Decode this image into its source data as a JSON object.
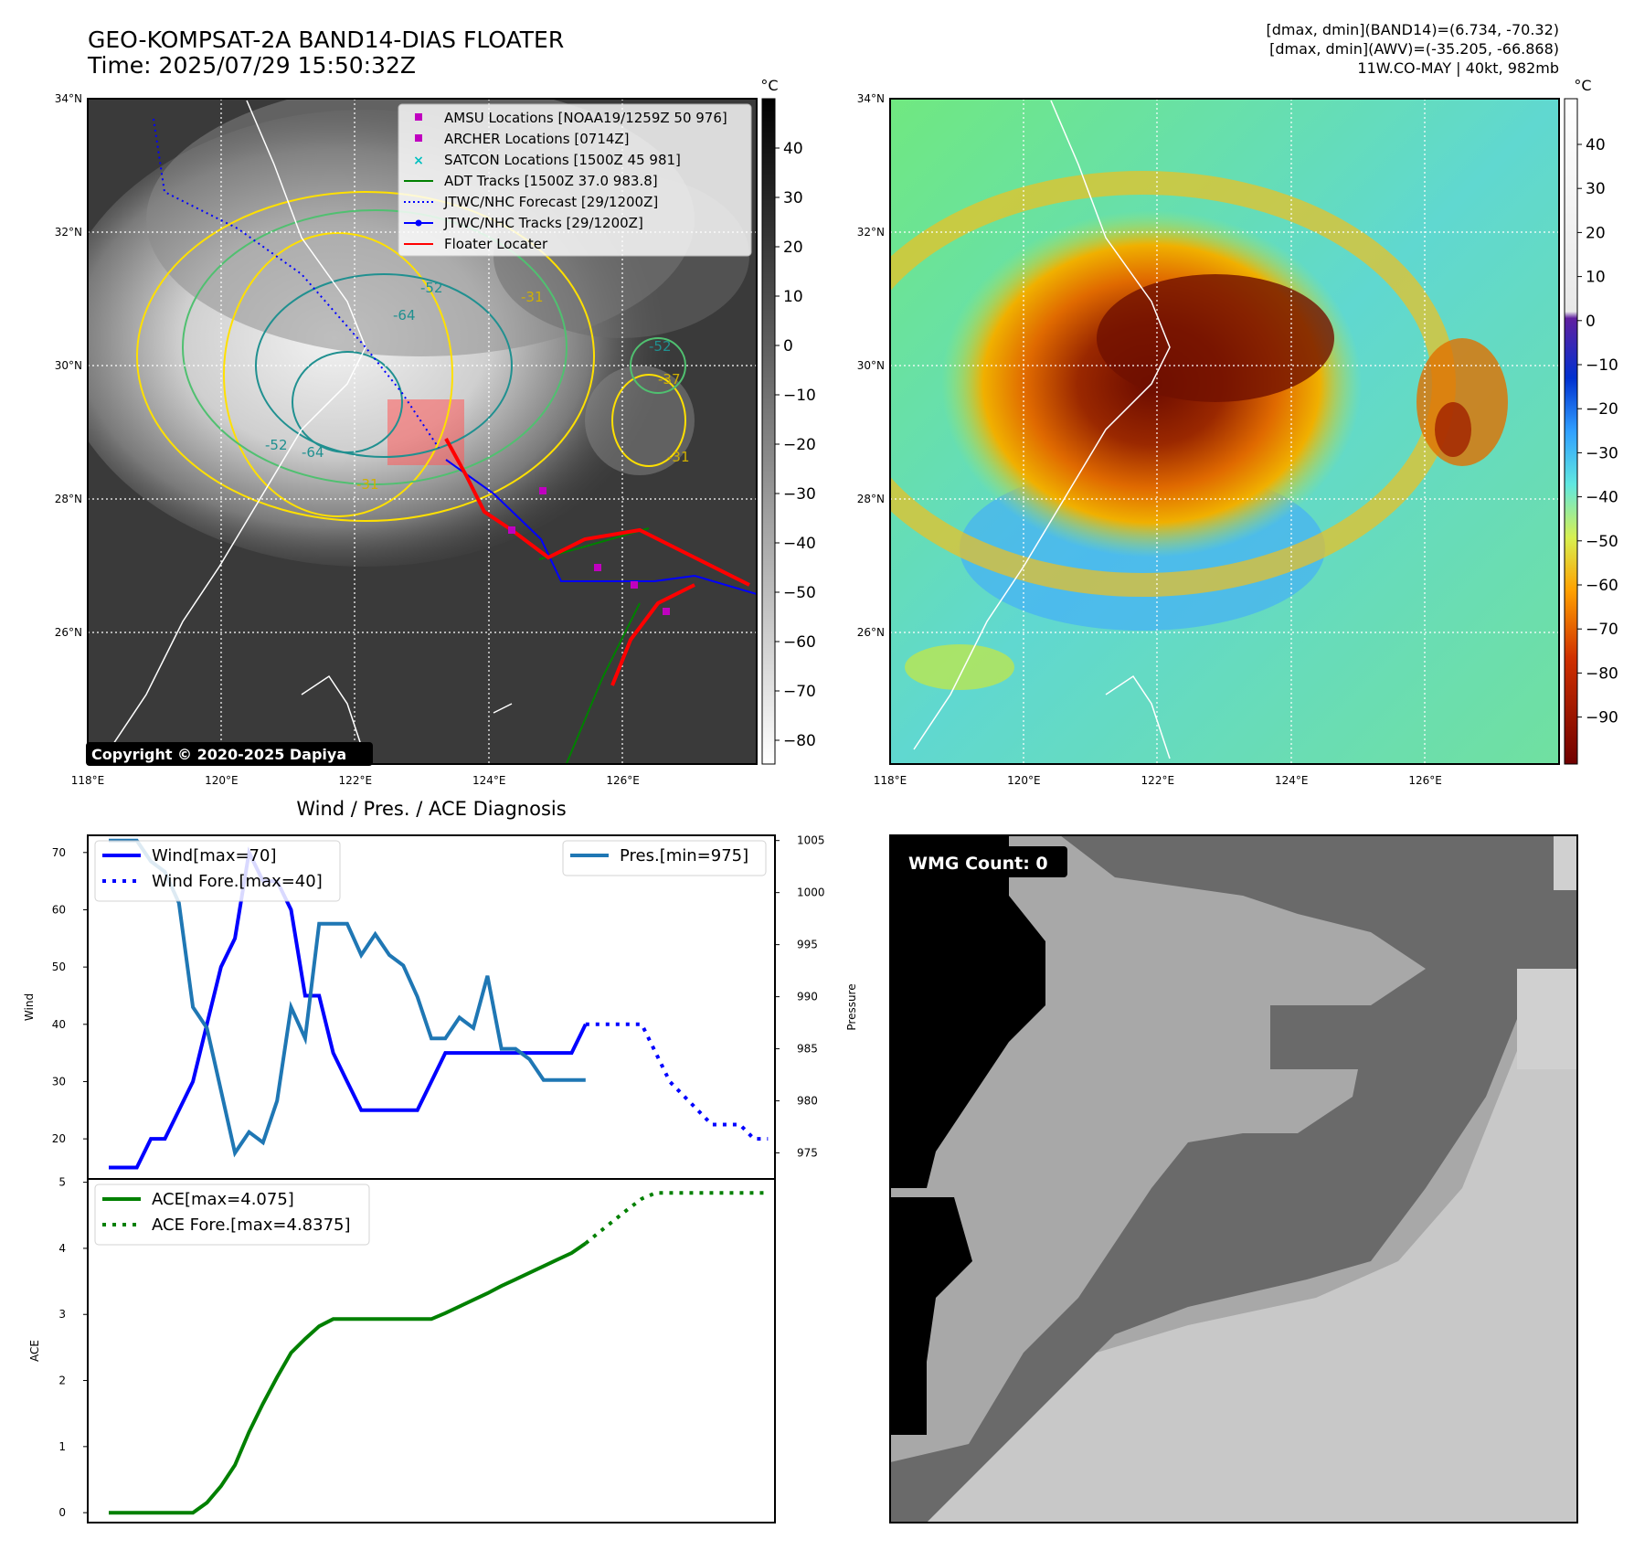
{
  "header": {
    "title_line1": "GEO-KOMPSAT-2A BAND14-DIAS FLOATER",
    "title_line2": "Time: 2025/07/29 15:50:32Z",
    "info_line1": "[dmax, dmin](BAND14)=(6.734, -70.32)",
    "info_line2": "[dmax, dmin](AWV)=(-35.205, -66.868)",
    "info_line3": "11W.CO-MAY | 40kt, 982mb"
  },
  "map_axes": {
    "lon_labels": [
      "118°E",
      "120°E",
      "122°E",
      "124°E",
      "126°E"
    ],
    "lat_labels": [
      "34°N",
      "32°N",
      "30°N",
      "28°N",
      "26°N"
    ]
  },
  "ir_panel": {
    "copyright": "Copyright © 2020-2025 Dapiya",
    "colorbar_unit": "°C",
    "colorbar_ticks": [
      "40",
      "30",
      "20",
      "10",
      "0",
      "−10",
      "−20",
      "−30",
      "−40",
      "−50",
      "−60",
      "−70",
      "−80"
    ],
    "legend": [
      {
        "label": "AMSU Locations [NOAA19/1259Z 50 976]",
        "color": "#c000c0",
        "kind": "square"
      },
      {
        "label": "ARCHER Locations [0714Z]",
        "color": "#c000c0",
        "kind": "square"
      },
      {
        "label": "SATCON Locations [1500Z 45 981]",
        "color": "#00c0c0",
        "kind": "cross"
      },
      {
        "label": "ADT Tracks [1500Z 37.0 983.8]",
        "color": "#008000",
        "kind": "line"
      },
      {
        "label": "JTWC/NHC Forecast [29/1200Z]",
        "color": "#0000ff",
        "kind": "dotted"
      },
      {
        "label": "JTWC/NHC Tracks [29/1200Z]",
        "color": "#0000ff",
        "kind": "linedot"
      },
      {
        "label": "Floater Locater",
        "color": "#ff0000",
        "kind": "line"
      }
    ],
    "contour_labels": [
      "-31",
      "-52",
      "-64",
      "-52",
      "-64",
      "-31",
      "-52",
      "-37",
      "-31"
    ]
  },
  "wv_panel": {
    "colorbar_unit": "°C",
    "colorbar_ticks": [
      "40",
      "30",
      "20",
      "10",
      "0",
      "−10",
      "−20",
      "−30",
      "−40",
      "−50",
      "−60",
      "−70",
      "−80",
      "−90"
    ]
  },
  "wmg_panel": {
    "badge": "WMG Count: 0"
  },
  "chart_data": [
    {
      "type": "line",
      "title": "Wind / Pres. / ACE Diagnosis",
      "ylabel": "Wind",
      "y2label": "Pressure",
      "ylim": [
        13,
        73
      ],
      "y2lim": [
        972.5,
        1005.5
      ],
      "yticks": [
        20,
        30,
        40,
        50,
        60,
        70
      ],
      "y2ticks": [
        975,
        980,
        985,
        990,
        995,
        1000,
        1005
      ],
      "series": [
        {
          "name": "Wind[max=70]",
          "color": "#0000ff",
          "style": "solid",
          "x": [
            0,
            1,
            2,
            3,
            4,
            5,
            6,
            7,
            8,
            9,
            10,
            11,
            12,
            13,
            14,
            15,
            16,
            17,
            18,
            19,
            20,
            21,
            22,
            23,
            24,
            25,
            26,
            27,
            28,
            29,
            30,
            31,
            32,
            33,
            34
          ],
          "values": [
            15,
            15,
            15,
            20,
            20,
            25,
            30,
            40,
            50,
            55,
            70,
            65,
            65,
            60,
            45,
            45,
            35,
            30,
            25,
            25,
            25,
            25,
            25,
            30,
            35,
            35,
            35,
            35,
            35,
            35,
            35,
            35,
            35,
            35,
            40
          ]
        },
        {
          "name": "Wind Fore.[max=40]",
          "color": "#0000ff",
          "style": "dotted",
          "x": [
            34,
            35,
            36,
            37,
            38,
            39,
            40,
            41,
            42,
            43,
            44,
            45,
            46,
            47
          ],
          "values": [
            40,
            40,
            40,
            40,
            40,
            35,
            30,
            27.5,
            25,
            22.5,
            22.5,
            22.5,
            20,
            20
          ]
        },
        {
          "name": "Pres.[min=975]",
          "color": "#1f77b4",
          "style": "solid",
          "axis": "right",
          "x": [
            0,
            1,
            2,
            3,
            4,
            5,
            6,
            7,
            8,
            9,
            10,
            11,
            12,
            13,
            14,
            15,
            16,
            17,
            18,
            19,
            20,
            21,
            22,
            23,
            24,
            25,
            26,
            27,
            28,
            29,
            30,
            31,
            32,
            33,
            34
          ],
          "values": [
            1005,
            1005,
            1005,
            1003,
            1002,
            999,
            989,
            987,
            981,
            975,
            977,
            976,
            980,
            989,
            986,
            997,
            997,
            997,
            994,
            996,
            994,
            993,
            990,
            986,
            986,
            988,
            987,
            992,
            985,
            985,
            984,
            982,
            982,
            982,
            982
          ]
        }
      ]
    },
    {
      "type": "line",
      "ylabel": "ACE",
      "ylim": [
        -0.15,
        5.05
      ],
      "yticks": [
        0,
        1,
        2,
        3,
        4,
        5
      ],
      "series": [
        {
          "name": "ACE[max=4.075]",
          "color": "#008000",
          "style": "solid",
          "x": [
            0,
            1,
            2,
            3,
            4,
            5,
            6,
            7,
            8,
            9,
            10,
            11,
            12,
            13,
            14,
            15,
            16,
            17,
            18,
            19,
            20,
            21,
            22,
            23,
            24,
            25,
            26,
            27,
            28,
            29,
            30,
            31,
            32,
            33,
            34
          ],
          "values": [
            0,
            0,
            0,
            0,
            0,
            0,
            0,
            0.15,
            0.4,
            0.72,
            1.22,
            1.65,
            2.05,
            2.42,
            2.63,
            2.82,
            2.93,
            2.93,
            2.93,
            2.93,
            2.93,
            2.93,
            2.93,
            2.93,
            3.02,
            3.12,
            3.22,
            3.32,
            3.43,
            3.53,
            3.63,
            3.73,
            3.83,
            3.93,
            4.075
          ]
        },
        {
          "name": "ACE Fore.[max=4.8375]",
          "color": "#008000",
          "style": "dotted",
          "x": [
            34,
            35,
            36,
            37,
            38,
            39,
            40,
            41,
            42,
            43,
            44,
            45,
            46,
            47
          ],
          "values": [
            4.075,
            4.25,
            4.42,
            4.59,
            4.75,
            4.84,
            4.84,
            4.84,
            4.84,
            4.84,
            4.84,
            4.84,
            4.84,
            4.84
          ]
        }
      ]
    }
  ]
}
